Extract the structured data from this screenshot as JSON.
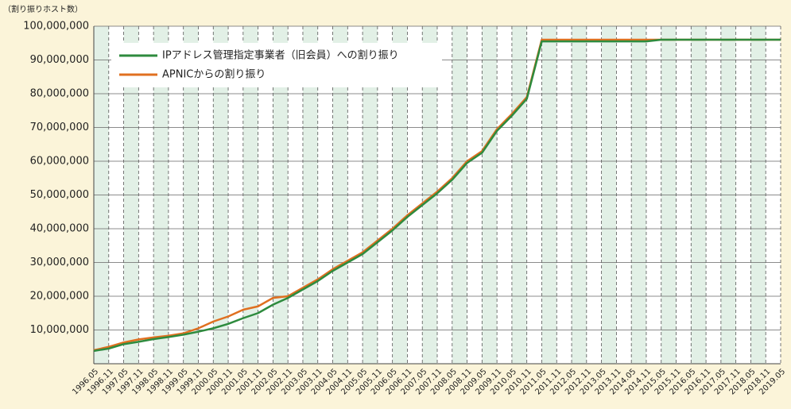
{
  "chart_data": {
    "type": "line",
    "y_axis_label": "（割り振りホスト数）",
    "categories": [
      "1996.05",
      "1996.11",
      "1997.05",
      "1997.11",
      "1998.05",
      "1998.11",
      "1999.05",
      "1999.11",
      "2000.05",
      "2000.11",
      "2001.05",
      "2001.11",
      "2002.05",
      "2002.11",
      "2003.05",
      "2003.11",
      "2004.05",
      "2004.11",
      "2005.05",
      "2005.11",
      "2006.05",
      "2006.11",
      "2007.05",
      "2007.11",
      "2008.05",
      "2008.11",
      "2009.05",
      "2009.11",
      "2010.05",
      "2010.11",
      "2011.05",
      "2011.11",
      "2012.05",
      "2012.11",
      "2013.05",
      "2013.11",
      "2014.05",
      "2014.11",
      "2015.05",
      "2015.11",
      "2016.05",
      "2016.11",
      "2017.05",
      "2017.11",
      "2018.05",
      "2018.11",
      "2019.05"
    ],
    "series": [
      {
        "name": "IPアドレス管理指定事業者（旧会員）への割り振り",
        "color": "#2e8b3e",
        "values": [
          3800000,
          4500000,
          5800000,
          6500000,
          7300000,
          7900000,
          8600000,
          9500000,
          10500000,
          11800000,
          13500000,
          15000000,
          17500000,
          19500000,
          22000000,
          24500000,
          27500000,
          30000000,
          32500000,
          36000000,
          39500000,
          43500000,
          47000000,
          50500000,
          54500000,
          59500000,
          62500000,
          69000000,
          73500000,
          78500000,
          95500000,
          95500000,
          95500000,
          95500000,
          95500000,
          95500000,
          95500000,
          95500000,
          96000000,
          96000000,
          96000000,
          96000000,
          96000000,
          96000000,
          96000000,
          96000000,
          96000000
        ]
      },
      {
        "name": "APNICからの割り振り",
        "color": "#e07020",
        "values": [
          4000000,
          5000000,
          6300000,
          7200000,
          7800000,
          8300000,
          9000000,
          10500000,
          12500000,
          14000000,
          16000000,
          17000000,
          19500000,
          20000000,
          22500000,
          25000000,
          28000000,
          30500000,
          33000000,
          36500000,
          40000000,
          44000000,
          47500000,
          51000000,
          55000000,
          60000000,
          63000000,
          69500000,
          74000000,
          79000000,
          96000000,
          96000000,
          96000000,
          96000000,
          96000000,
          96000000,
          96000000,
          96000000,
          96000000,
          96000000,
          96000000,
          96000000,
          96000000,
          96000000,
          96000000,
          96000000,
          96000000
        ]
      }
    ],
    "ylim": [
      0,
      100000000
    ],
    "yticks": [
      {
        "value": 10000000,
        "label": "10,000,000"
      },
      {
        "value": 20000000,
        "label": "20,000,000"
      },
      {
        "value": 30000000,
        "label": "30,000,000"
      },
      {
        "value": 40000000,
        "label": "40,000,000"
      },
      {
        "value": 50000000,
        "label": "50,000,000"
      },
      {
        "value": 60000000,
        "label": "60,000,000"
      },
      {
        "value": 70000000,
        "label": "70,000,000"
      },
      {
        "value": 80000000,
        "label": "80,000,000"
      },
      {
        "value": 90000000,
        "label": "90,000,000"
      },
      {
        "value": 100000000,
        "label": "100,000,000"
      }
    ],
    "grid": true
  }
}
